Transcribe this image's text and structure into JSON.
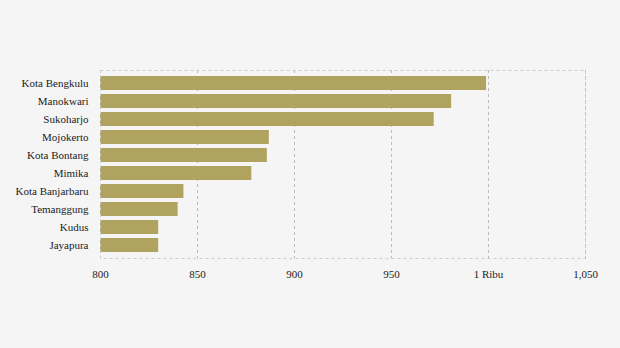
{
  "chart_data": {
    "type": "bar",
    "orientation": "horizontal",
    "categories": [
      "Kota Bengkulu",
      "Manokwari",
      "Sukoharjo",
      "Mojokerto",
      "Kota Bontang",
      "Mimika",
      "Kota Banjarbaru",
      "Temanggung",
      "Kudus",
      "Jayapura"
    ],
    "values": [
      999,
      981,
      972,
      887,
      886,
      878,
      843,
      840,
      830,
      830
    ],
    "color": "#b0a35f",
    "xlim": [
      800,
      1050
    ],
    "xticks": [
      800,
      850,
      900,
      950,
      {
        "value": 1000,
        "label": "1 Ribu"
      },
      {
        "value": 1050,
        "label": "1,050"
      }
    ],
    "grid": true
  }
}
